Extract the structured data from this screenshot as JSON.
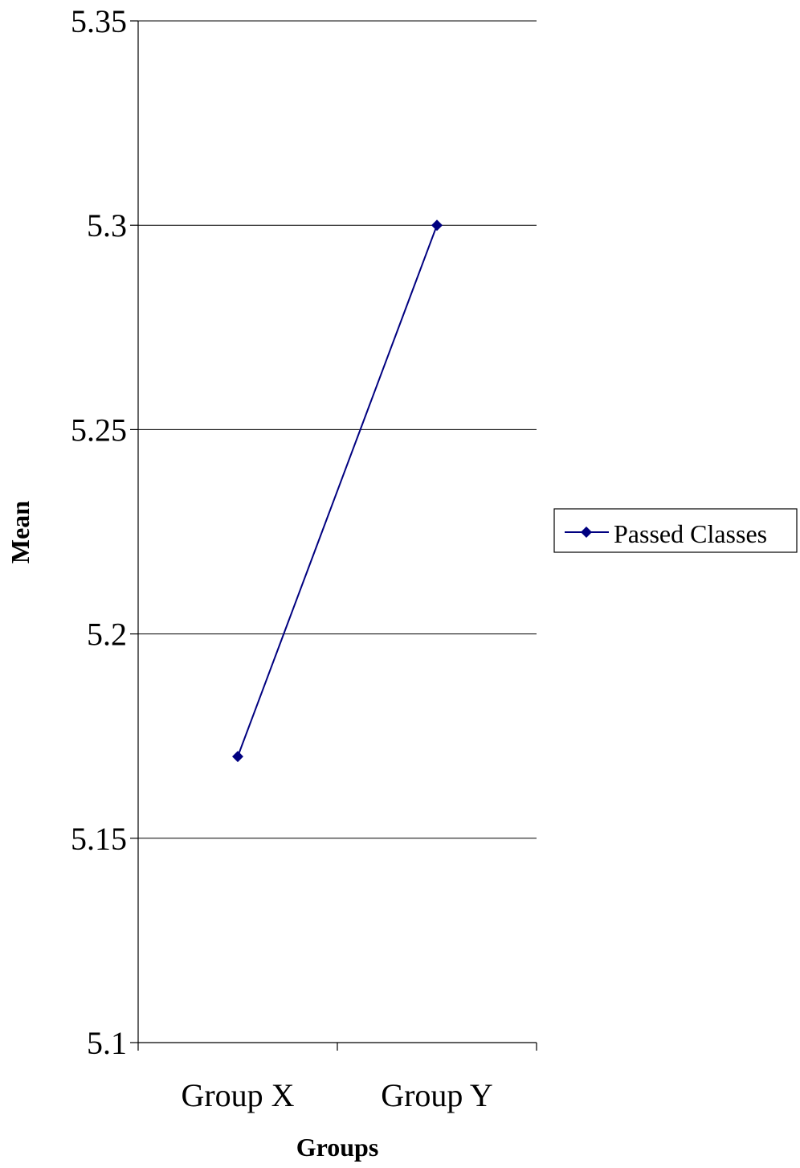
{
  "chart_data": {
    "type": "line",
    "categories": [
      "Group X",
      "Group Y"
    ],
    "series": [
      {
        "name": "Passed Classes",
        "values": [
          5.17,
          5.3
        ],
        "color": "#000080"
      }
    ],
    "xlabel": "Groups",
    "ylabel": "Mean",
    "ylim": [
      5.1,
      5.35
    ],
    "yticks": [
      "5.35",
      "5.3",
      "5.25",
      "5.2",
      "5.15",
      "5.1"
    ],
    "ytick_values": [
      5.35,
      5.3,
      5.25,
      5.2,
      5.15,
      5.1
    ],
    "grid": true,
    "legend_position": "right",
    "marker": "diamond"
  }
}
